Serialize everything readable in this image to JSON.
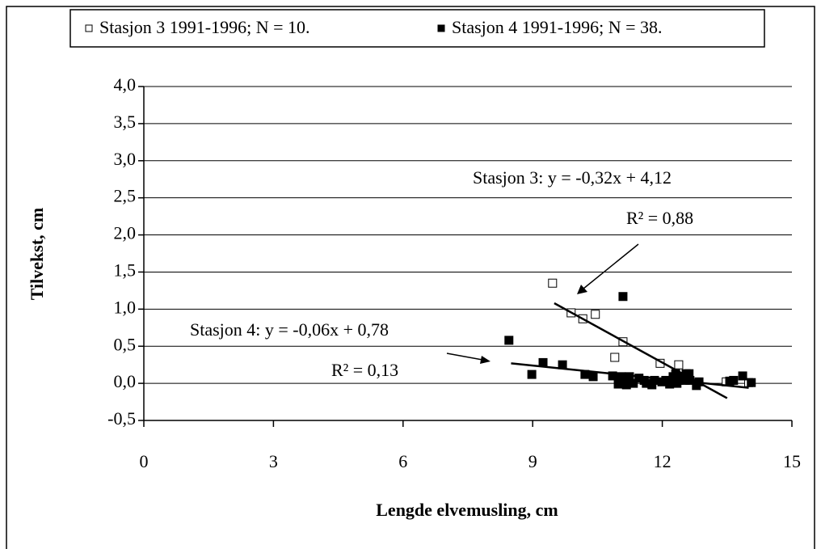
{
  "chart_data": {
    "type": "scatter",
    "x_label": "Lengde elvemusling, cm",
    "y_label": "Tilvekst, cm",
    "xlim": [
      0,
      15
    ],
    "ylim": [
      -0.5,
      4
    ],
    "xticks": [
      0,
      3,
      6,
      9,
      12,
      15
    ],
    "yticks": [
      {
        "value": -0.5,
        "label": "-0,5"
      },
      {
        "value": 0,
        "label": "0,0"
      },
      {
        "value": 0.5,
        "label": "0,5"
      },
      {
        "value": 1,
        "label": "1,0"
      },
      {
        "value": 1.5,
        "label": "1,5"
      },
      {
        "value": 2,
        "label": "2,0"
      },
      {
        "value": 2.5,
        "label": "2,5"
      },
      {
        "value": 3,
        "label": "3,0"
      },
      {
        "value": 3.5,
        "label": "3,5"
      },
      {
        "value": 4,
        "label": "4,0"
      }
    ],
    "grid": true,
    "legend": "top",
    "series": [
      {
        "name": "Stasjon 3 1991-1996; N =  10.",
        "color": "#000000",
        "marker": "open",
        "x": [
          9.46,
          9.89,
          10.16,
          10.45,
          10.9,
          11.09,
          11.95,
          12.38,
          13.48,
          14.0
        ],
        "values": [
          1.35,
          0.95,
          0.87,
          0.93,
          0.35,
          0.56,
          0.27,
          0.25,
          0.02,
          0.01
        ],
        "trendline": {
          "x": [
            9.5,
            13.5
          ],
          "values": [
            1.08,
            -0.2
          ]
        }
      },
      {
        "name": "Stasjon 4 1991-1996; N =  38.",
        "color": "#000000",
        "marker": "filled",
        "x": [
          8.45,
          8.98,
          9.24,
          9.69,
          10.21,
          10.4,
          10.85,
          10.98,
          11.09,
          11.05,
          11.17,
          11.22,
          11.24,
          11.58,
          11.63,
          11.74,
          11.82,
          11.76,
          12.08,
          11.99,
          12.25,
          12.31,
          12.38,
          12.47,
          12.55,
          12.62,
          12.53,
          12.79,
          12.85,
          13.56,
          13.65,
          13.86,
          14.06,
          11.33,
          12.17,
          12.34,
          12.64,
          11.46
        ],
        "values": [
          0.58,
          0.12,
          0.28,
          0.25,
          0.12,
          0.09,
          0.1,
          -0.01,
          1.17,
          0.09,
          -0.02,
          0.04,
          0.09,
          0.04,
          0,
          0,
          0.04,
          -0.02,
          0.04,
          0.02,
          0.09,
          0.13,
          0.04,
          0.09,
          0.13,
          0.13,
          0.04,
          -0.03,
          0.02,
          0.03,
          0.04,
          0.1,
          0.01,
          0,
          -0.01,
          0,
          0.04,
          0.07
        ],
        "trendline": {
          "x": [
            8.5,
            14
          ],
          "values": [
            0.27,
            -0.06
          ]
        }
      }
    ],
    "annotations": [
      "Stasjon 3:  y = -0,32x + 4,12",
      "R² = 0,88",
      "Stasjon 4: y = -0,06x + 0,78",
      "R² = 0,13"
    ]
  }
}
